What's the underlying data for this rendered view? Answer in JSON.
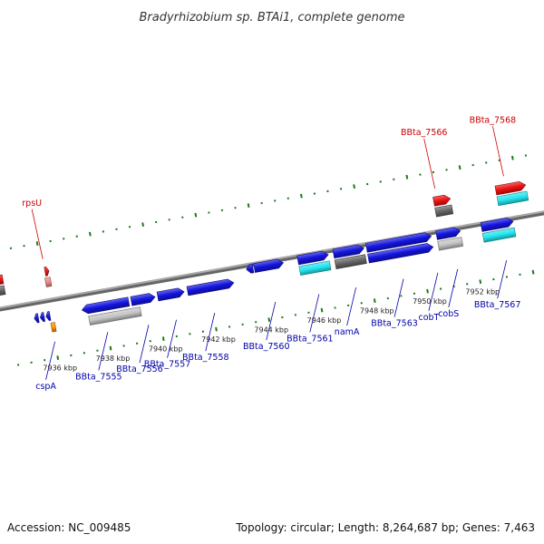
{
  "title": "Bradyrhizobium sp. BTAi1, complete genome",
  "footer": {
    "accession": "Accession: NC_009485",
    "summary": "Topology: circular; Length: 8,264,687 bp; Genes: 7,463"
  },
  "colors": {
    "backbone": "#888888",
    "tick": "#1a7a1a",
    "label_top": "#cc0000",
    "label_bottom": "#0000aa",
    "blue": "#1414e0",
    "red": "#ee1111",
    "pink": "#ee8888",
    "cyan": "#22e6f0",
    "dgray": "#666666",
    "lgray": "#c4c4c4",
    "orange": "#ff9900"
  },
  "scale": {
    "unit": "kbp",
    "start_kbp": 7934.2,
    "end_kbp": 7954.8,
    "major_every_kbp": 2,
    "minor_every_kbp": 0.5
  },
  "ticks": [
    "7936 kbp",
    "7938 kbp",
    "7940 kbp",
    "7942 kbp",
    "7944 kbp",
    "7946 kbp",
    "7948 kbp",
    "7950 kbp",
    "7952 kbp"
  ],
  "features": [
    {
      "track": -2,
      "start": 7934.0,
      "end": 7934.5,
      "dir": 0,
      "color": "red"
    },
    {
      "track": -1,
      "start": 7934.0,
      "end": 7934.5,
      "dir": 0,
      "color": "dgray"
    },
    {
      "track": 1,
      "start": 7935.4,
      "end": 7935.55,
      "dir": -1,
      "color": "blue"
    },
    {
      "track": 1,
      "start": 7935.62,
      "end": 7935.77,
      "dir": -1,
      "color": "blue"
    },
    {
      "track": 1,
      "start": 7935.84,
      "end": 7935.99,
      "dir": -1,
      "color": "blue"
    },
    {
      "track": 2,
      "start": 7935.97,
      "end": 7936.12,
      "dir": 0,
      "color": "orange"
    },
    {
      "track": -1,
      "start": 7936.05,
      "end": 7936.25,
      "dir": 0,
      "color": "pink"
    },
    {
      "track": -2,
      "start": 7936.1,
      "end": 7936.25,
      "dir": 1,
      "color": "red"
    },
    {
      "track": 1,
      "start": 7937.2,
      "end": 7938.97,
      "dir": -1,
      "color": "blue"
    },
    {
      "track": 2,
      "start": 7937.4,
      "end": 7939.35,
      "dir": 0,
      "color": "lgray"
    },
    {
      "track": 1,
      "start": 7939.07,
      "end": 7939.97,
      "dir": 1,
      "color": "blue"
    },
    {
      "track": 1,
      "start": 7940.07,
      "end": 7941.07,
      "dir": 1,
      "color": "blue"
    },
    {
      "track": 1,
      "start": 7941.2,
      "end": 7942.95,
      "dir": 1,
      "color": "blue"
    },
    {
      "track": 0,
      "start": 7943.5,
      "end": 7943.75,
      "dir": -1,
      "color": "blue"
    },
    {
      "track": 0,
      "start": 7943.8,
      "end": 7944.9,
      "dir": 1,
      "color": "blue"
    },
    {
      "track": 0,
      "start": 7945.45,
      "end": 7946.6,
      "dir": 1,
      "color": "blue"
    },
    {
      "track": 1,
      "start": 7945.45,
      "end": 7946.6,
      "dir": 0,
      "color": "cyan"
    },
    {
      "track": 0,
      "start": 7946.8,
      "end": 7947.95,
      "dir": 1,
      "color": "blue"
    },
    {
      "track": 1,
      "start": 7946.8,
      "end": 7947.95,
      "dir": 0,
      "color": "dgray"
    },
    {
      "track": 0,
      "start": 7948.05,
      "end": 7950.5,
      "dir": 1,
      "color": "blue"
    },
    {
      "track": 1,
      "start": 7948.05,
      "end": 7950.5,
      "dir": 1,
      "color": "blue"
    },
    {
      "track": 0,
      "start": 7950.7,
      "end": 7951.6,
      "dir": 1,
      "color": "blue"
    },
    {
      "track": 1,
      "start": 7950.7,
      "end": 7951.6,
      "dir": 0,
      "color": "lgray"
    },
    {
      "track": -1,
      "start": 7950.82,
      "end": 7951.45,
      "dir": 0,
      "color": "dgray"
    },
    {
      "track": -2,
      "start": 7950.82,
      "end": 7951.45,
      "dir": 1,
      "color": "red"
    },
    {
      "track": 0,
      "start": 7952.4,
      "end": 7953.6,
      "dir": 1,
      "color": "blue"
    },
    {
      "track": 1,
      "start": 7952.4,
      "end": 7953.6,
      "dir": 0,
      "color": "cyan"
    },
    {
      "track": -1,
      "start": 7953.17,
      "end": 7954.3,
      "dir": 0,
      "color": "cyan"
    },
    {
      "track": -2,
      "start": 7953.17,
      "end": 7954.3,
      "dir": 1,
      "color": "red"
    }
  ],
  "labels": [
    {
      "text": "rpsU",
      "pos": 7936.1,
      "side": "top"
    },
    {
      "text": "BBta_7566",
      "pos": 7950.95,
      "side": "top"
    },
    {
      "text": "BBta_7568",
      "pos": 7953.55,
      "side": "top"
    },
    {
      "text": "cspA",
      "pos": 7936.0,
      "side": "bottom"
    },
    {
      "text": "BBta_7555",
      "pos": 7938.0,
      "side": "bottom"
    },
    {
      "text": "BBta_7556",
      "pos": 7939.55,
      "side": "bottom"
    },
    {
      "text": "BBta_7557",
      "pos": 7940.6,
      "side": "bottom"
    },
    {
      "text": "BBta_7558",
      "pos": 7942.05,
      "side": "bottom"
    },
    {
      "text": "BBta_7560",
      "pos": 7944.35,
      "side": "bottom"
    },
    {
      "text": "BBta_7561",
      "pos": 7946.0,
      "side": "bottom"
    },
    {
      "text": "namA",
      "pos": 7947.4,
      "side": "bottom"
    },
    {
      "text": "BBta_7563",
      "pos": 7949.2,
      "side": "bottom"
    },
    {
      "text": "cobT",
      "pos": 7950.5,
      "side": "bottom"
    },
    {
      "text": "cobS",
      "pos": 7951.25,
      "side": "bottom"
    },
    {
      "text": "BBta_7567",
      "pos": 7953.1,
      "side": "bottom"
    }
  ]
}
